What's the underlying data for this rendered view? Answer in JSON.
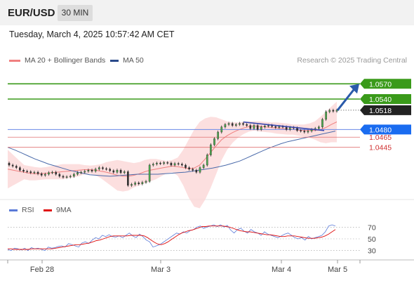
{
  "header": {
    "symbol": "EUR/USD",
    "timeframe": "30 MIN"
  },
  "datetime": "Tuesday, March 4, 2025 10:57:42 AM CET",
  "copyright": "Research © 2025 Trading Central",
  "legend": {
    "ma20": "MA 20 + Bollinger Bands",
    "ma50": "MA 50",
    "rsi": "RSI",
    "ma9": "9MA"
  },
  "colors": {
    "resistance": "#3a9a1a",
    "pivot": "#1a6cf0",
    "support": "#e07070",
    "current": "#222222",
    "ma20": "#f08080",
    "bollinger_fill": "#fbd4d4",
    "ma50": "#4a6aaa",
    "rsi": "#5a7ad8",
    "rsi_ma": "#e01010",
    "arrow": "#2a5aaa",
    "trendline": "#3a4ab0"
  },
  "chart_data": [
    {
      "type": "candlestick",
      "title": "EUR/USD 30 MIN",
      "x_labels": [
        "Feb 28",
        "Mar 3",
        "Mar 4",
        "Mar 5"
      ],
      "ylim": [
        1.0345,
        1.0605
      ],
      "levels": [
        {
          "value": 1.057,
          "label": "1.0570",
          "kind": "resistance"
        },
        {
          "value": 1.054,
          "label": "1.0540",
          "kind": "resistance"
        },
        {
          "value": 1.0518,
          "label": "1.0518",
          "kind": "current"
        },
        {
          "value": 1.048,
          "label": "1.0480",
          "kind": "pivot"
        },
        {
          "value": 1.0465,
          "label": "1.0465",
          "kind": "support"
        },
        {
          "value": 1.0445,
          "label": "1.0445",
          "kind": "support"
        }
      ],
      "close_series": [
        1.041,
        1.0408,
        1.0405,
        1.04,
        1.0398,
        1.0397,
        1.0395,
        1.0396,
        1.0393,
        1.039,
        1.0392,
        1.0395,
        1.0396,
        1.0392,
        1.0388,
        1.0386,
        1.0387,
        1.0388,
        1.0392,
        1.0395,
        1.0396,
        1.0398,
        1.04,
        1.0398,
        1.0402,
        1.0405,
        1.0403,
        1.0402,
        1.0399,
        1.0396,
        1.04,
        1.0395,
        1.0397,
        1.037,
        1.0372,
        1.0375,
        1.0373,
        1.0376,
        1.0378,
        1.041,
        1.0412,
        1.0414,
        1.0413,
        1.0415,
        1.0414,
        1.041,
        1.0413,
        1.0412,
        1.041,
        1.0405,
        1.0402,
        1.04,
        1.0396,
        1.0405,
        1.041,
        1.043,
        1.045,
        1.0462,
        1.0475,
        1.0485,
        1.049,
        1.0492,
        1.0488,
        1.049,
        1.0492,
        1.049,
        1.0488,
        1.0482,
        1.0488,
        1.048,
        1.0485,
        1.0487,
        1.0488,
        1.0486,
        1.0484,
        1.0486,
        1.0485,
        1.048,
        1.0484,
        1.0483,
        1.0478,
        1.0477,
        1.0475,
        1.0477,
        1.048,
        1.0482,
        1.0485,
        1.05,
        1.0515,
        1.0518,
        1.0516,
        1.0518
      ],
      "ma20": [
        1.0402,
        1.04,
        1.0398,
        1.0396,
        1.0394,
        1.0393,
        1.0393,
        1.0394,
        1.0395,
        1.0396,
        1.0397,
        1.0398,
        1.0399,
        1.04,
        1.0401,
        1.0401,
        1.04,
        1.0398,
        1.0396,
        1.0393,
        1.039,
        1.0388,
        1.0388,
        1.039,
        1.0393,
        1.0397,
        1.04,
        1.0402,
        1.0404,
        1.0406,
        1.0408,
        1.0407,
        1.0405,
        1.0403,
        1.0404,
        1.041,
        1.0422,
        1.0435,
        1.0448,
        1.046,
        1.0468,
        1.0474,
        1.0479,
        1.0483,
        1.0486,
        1.0487,
        1.0486,
        1.0485,
        1.0484,
        1.0483,
        1.0482,
        1.0481,
        1.048,
        1.0479,
        1.0478,
        1.0478,
        1.0478,
        1.048,
        1.0484,
        1.049,
        1.0495
      ],
      "bb_upper": [
        1.044,
        1.043,
        1.042,
        1.041,
        1.0408,
        1.0406,
        1.0405,
        1.0406,
        1.0408,
        1.041,
        1.0412,
        1.0412,
        1.0412,
        1.0412,
        1.041,
        1.0409,
        1.041,
        1.0412,
        1.0416,
        1.0418,
        1.042,
        1.0418,
        1.0416,
        1.0414,
        1.0416,
        1.042,
        1.0422,
        1.0422,
        1.042,
        1.0418,
        1.042,
        1.0425,
        1.044,
        1.046,
        1.048,
        1.0495,
        1.0502,
        1.0505,
        1.0504,
        1.05,
        1.0496,
        1.0494,
        1.0494,
        1.0495,
        1.0496,
        1.0496,
        1.0496,
        1.0495,
        1.0494,
        1.0494,
        1.0493,
        1.0492,
        1.049,
        1.049,
        1.049,
        1.0492,
        1.0496,
        1.0505,
        1.0515,
        1.0525,
        1.0535
      ],
      "bb_lower": [
        1.0364,
        1.037,
        1.0376,
        1.0382,
        1.038,
        1.038,
        1.0381,
        1.0382,
        1.0382,
        1.0382,
        1.0382,
        1.0384,
        1.0386,
        1.0388,
        1.0392,
        1.0393,
        1.039,
        1.0384,
        1.0376,
        1.0368,
        1.036,
        1.0358,
        1.036,
        1.0366,
        1.037,
        1.0374,
        1.0378,
        1.0382,
        1.0388,
        1.0394,
        1.0396,
        1.0389,
        1.037,
        1.0346,
        1.0328,
        1.0325,
        1.0342,
        1.0365,
        1.0392,
        1.042,
        1.044,
        1.0454,
        1.0464,
        1.0471,
        1.0476,
        1.0478,
        1.0476,
        1.0475,
        1.0474,
        1.0472,
        1.0471,
        1.047,
        1.047,
        1.0468,
        1.0466,
        1.0464,
        1.046,
        1.0455,
        1.0453,
        1.0455,
        1.0455
      ],
      "ma50": [
        1.0445,
        1.044,
        1.0434,
        1.0428,
        1.0422,
        1.0417,
        1.0412,
        1.0408,
        1.0404,
        1.04,
        1.0397,
        1.0394,
        1.0391,
        1.039,
        1.0389,
        1.0388,
        1.0389,
        1.039,
        1.0391,
        1.0392,
        1.0392,
        1.0392,
        1.0392,
        1.0393,
        1.0394,
        1.0395,
        1.0396,
        1.0398,
        1.04,
        1.0402,
        1.0404,
        1.0407,
        1.041,
        1.0414,
        1.0418,
        1.0424,
        1.043,
        1.0436,
        1.0442,
        1.0447,
        1.0452,
        1.0456,
        1.0459,
        1.0462,
        1.0465,
        1.0468,
        1.0471,
        1.0474,
        1.0477
      ],
      "trendline": [
        [
          1.0492,
          1.0478
        ]
      ],
      "arrow": {
        "from": 1.0518,
        "to": 1.057
      }
    },
    {
      "type": "line",
      "title": "RSI",
      "ylim": [
        20,
        80
      ],
      "y_ticks": [
        70,
        50,
        30
      ],
      "series": [
        {
          "name": "RSI",
          "values": [
            32,
            30,
            34,
            33,
            31,
            34,
            30,
            35,
            33,
            34,
            32,
            30,
            36,
            34,
            35,
            37,
            38,
            36,
            42,
            40,
            38,
            36,
            43,
            45,
            42,
            48,
            52,
            50,
            56,
            54,
            57,
            54,
            53,
            55,
            52,
            56,
            60,
            55,
            52,
            58,
            54,
            48,
            45,
            36,
            38,
            40,
            44,
            48,
            52,
            56,
            60,
            58,
            62,
            60,
            64,
            66,
            70,
            72,
            68,
            70,
            72,
            74,
            71,
            74,
            70,
            73,
            65,
            60,
            66,
            68,
            63,
            60,
            66,
            62,
            60,
            56,
            62,
            58,
            56,
            54,
            52,
            55,
            58,
            60,
            56,
            52,
            50,
            52,
            48,
            54,
            50,
            52,
            54,
            56,
            62,
            72,
            74,
            72
          ]
        },
        {
          "name": "9MA",
          "values": [
            33,
            33,
            32,
            32,
            32,
            32,
            32,
            33,
            33,
            33,
            33,
            33,
            33,
            33,
            34,
            35,
            36,
            37,
            38,
            39,
            40,
            40,
            41,
            42,
            43,
            45,
            47,
            48,
            50,
            52,
            54,
            55,
            55,
            55,
            55,
            55,
            56,
            56,
            56,
            56,
            55,
            52,
            48,
            44,
            41,
            40,
            42,
            45,
            49,
            53,
            57,
            60,
            62,
            64,
            65,
            67,
            69,
            71,
            71,
            72,
            72,
            72,
            72,
            72,
            71,
            70,
            68,
            66,
            64,
            63,
            62,
            62,
            61,
            60,
            59,
            58,
            57,
            57,
            56,
            55,
            54,
            54,
            55,
            55,
            55,
            54,
            53,
            52,
            51,
            51,
            51,
            52,
            53,
            55,
            58,
            62,
            66
          ]
        }
      ]
    }
  ]
}
